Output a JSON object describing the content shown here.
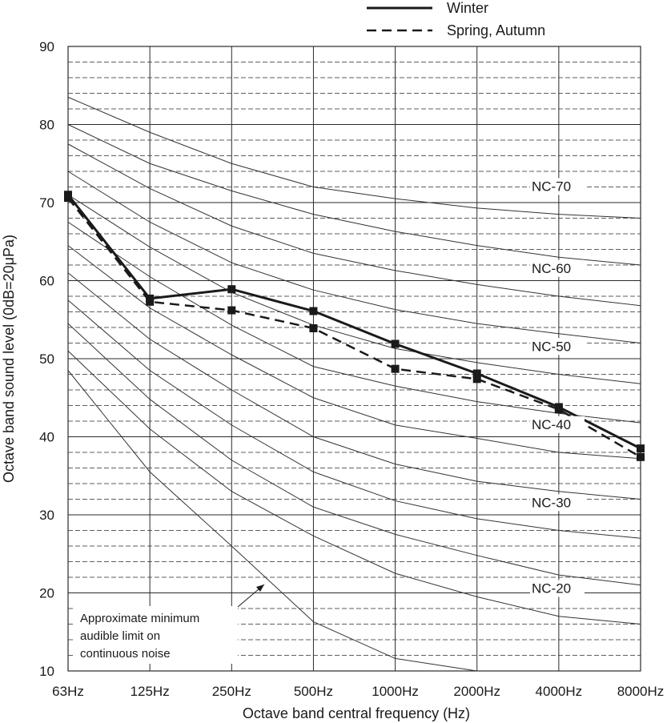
{
  "chart_data": {
    "type": "line",
    "title": "",
    "xlabel": "Octave band central frequency (Hz)",
    "ylabel": "Octave band sound level (0dB=20μPa)",
    "categories": [
      "63Hz",
      "125Hz",
      "250Hz",
      "500Hz",
      "1000Hz",
      "2000Hz",
      "4000Hz",
      "8000Hz"
    ],
    "ylim": [
      10,
      90
    ],
    "yticks": [
      "10",
      "20",
      "30",
      "40",
      "50",
      "60",
      "70",
      "80",
      "90"
    ],
    "legend_position": "top-right",
    "series": [
      {
        "name": "Winter",
        "style": "solid",
        "marker": "square",
        "values": [
          71.0,
          57.7,
          58.9,
          56.1,
          51.9,
          48.1,
          43.8,
          38.5
        ]
      },
      {
        "name": "Spring, Autumn",
        "style": "dashed",
        "marker": "square",
        "values": [
          70.6,
          57.3,
          56.2,
          53.9,
          48.7,
          47.4,
          43.5,
          37.4
        ]
      }
    ],
    "nc_curves": [
      {
        "name": "NC-70",
        "values": [
          83.5,
          79,
          75,
          72,
          70.5,
          69.3,
          68.5,
          68
        ],
        "labeled": true
      },
      {
        "name": "NC-65",
        "values": [
          80,
          75,
          71.5,
          68.5,
          66.3,
          64.5,
          63,
          62
        ],
        "labeled": false
      },
      {
        "name": "NC-60",
        "values": [
          77.5,
          71.8,
          67,
          63.5,
          61.3,
          59.5,
          58,
          56.8
        ],
        "labeled": true
      },
      {
        "name": "NC-55",
        "values": [
          74,
          67.5,
          62.3,
          58.8,
          56.3,
          54.5,
          53.2,
          52
        ],
        "labeled": false
      },
      {
        "name": "NC-50",
        "values": [
          71,
          64.3,
          58.5,
          54.3,
          51.3,
          49.5,
          48,
          46.8
        ],
        "labeled": true
      },
      {
        "name": "NC-45",
        "values": [
          67.5,
          60.5,
          54.3,
          49,
          46.5,
          44.5,
          43,
          41.8
        ],
        "labeled": false
      },
      {
        "name": "NC-40",
        "values": [
          64.5,
          56.5,
          50.5,
          45,
          41.5,
          39.8,
          38,
          37.2
        ],
        "labeled": true
      },
      {
        "name": "NC-35",
        "values": [
          61,
          52.5,
          46,
          40,
          36.5,
          34.3,
          33,
          32
        ],
        "labeled": false
      },
      {
        "name": "NC-30",
        "values": [
          57.5,
          48.5,
          41.5,
          35.5,
          31.8,
          29.5,
          28,
          27
        ],
        "labeled": true
      },
      {
        "name": "NC-25",
        "values": [
          54.5,
          44.8,
          37,
          31,
          27.5,
          24.8,
          22.3,
          21
        ],
        "labeled": false
      },
      {
        "name": "NC-20",
        "values": [
          51,
          41,
          33,
          27.3,
          22.5,
          19.5,
          17,
          16
        ],
        "labeled": true
      }
    ],
    "audible_limit": {
      "values": [
        48.5,
        35.5,
        26,
        16.3,
        11.6,
        10
      ]
    },
    "annotation": {
      "lines": [
        "Approximate minimum",
        "audible limit on",
        "continuous noise"
      ]
    }
  },
  "colors": {
    "line": "#1a1a1a",
    "grid": "#2a2a2a",
    "curve": "#333333",
    "background": "#ffffff"
  }
}
